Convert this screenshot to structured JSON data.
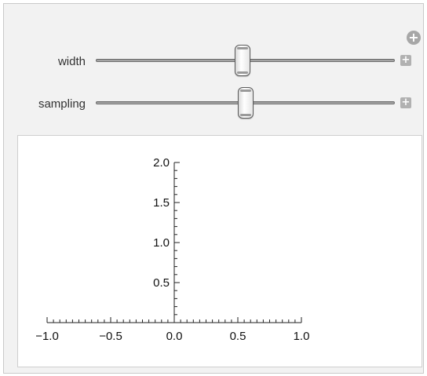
{
  "controls": {
    "add_icon": "+",
    "sliders": [
      {
        "label": "width",
        "value": 0.49,
        "expand_icon": "+"
      },
      {
        "label": "sampling",
        "value": 0.5,
        "expand_icon": "+"
      }
    ]
  },
  "chart_data": {
    "type": "line",
    "xlim": [
      -1.0,
      1.0
    ],
    "ylim": [
      0.0,
      2.0
    ],
    "x_ticks": [
      "−1.0",
      "−0.5",
      "0.0",
      "0.5",
      "1.0"
    ],
    "y_ticks": [
      "0.5",
      "1.0",
      "1.5",
      "2.0"
    ],
    "series": [],
    "grid": false
  }
}
